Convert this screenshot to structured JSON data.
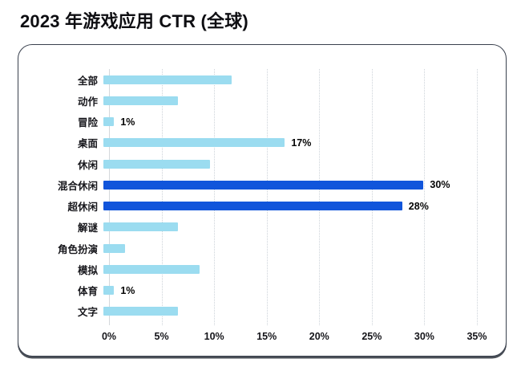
{
  "page_title": "2023 年游戏应用 CTR (全球)",
  "chart_data": {
    "type": "bar",
    "orientation": "horizontal",
    "title": "2023 年游戏应用 CTR (全球)",
    "categories": [
      "全部",
      "动作",
      "冒险",
      "桌面",
      "休闲",
      "混合休闲",
      "超休闲",
      "解谜",
      "角色扮演",
      "模拟",
      "体育",
      "文字"
    ],
    "values": [
      12,
      7,
      1,
      17,
      10,
      30,
      28,
      7,
      2,
      9,
      1,
      7
    ],
    "bar_labels": [
      "",
      "",
      "1%",
      "17%",
      "",
      "30%",
      "28%",
      "",
      "",
      "",
      "1%",
      ""
    ],
    "highlighted_categories": [
      "混合休闲",
      "超休闲"
    ],
    "x_ticks": [
      "0%",
      "5%",
      "10%",
      "15%",
      "20%",
      "25%",
      "30%",
      "35%"
    ],
    "xlim": [
      0,
      35
    ],
    "grid": "vertical-dotted",
    "legend": "none",
    "colors": {
      "bar_default": "#9BDCF0",
      "bar_highlight": "#1155DB",
      "gridline": "#cdd3d9",
      "axis_line": "#d4d8dc",
      "panel_border": "#3a414e",
      "label_text": "#17171c"
    }
  }
}
